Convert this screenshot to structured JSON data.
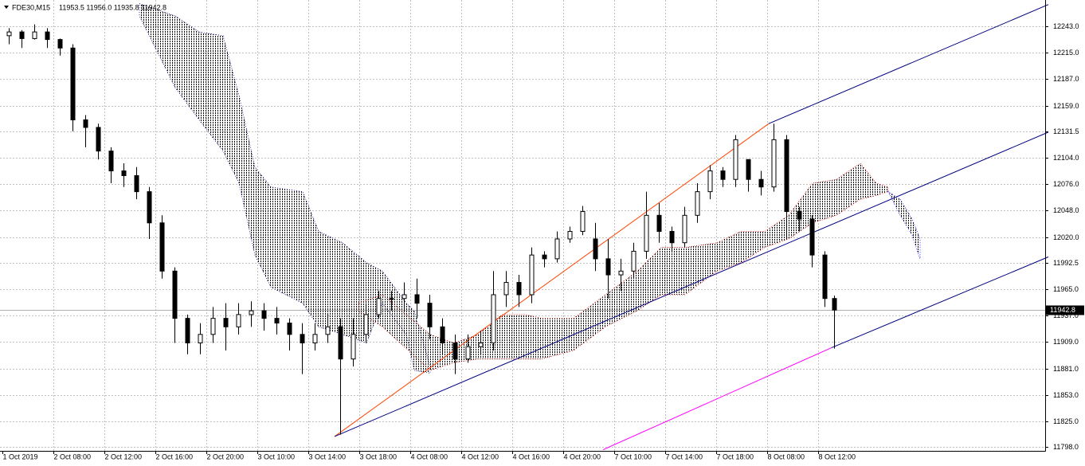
{
  "chart_data": {
    "type": "candlestick",
    "symbol": "FDE30,M15",
    "info": "11953.5 11956.0 11935.8 11942.8",
    "xlim": [
      -0.75,
      327.25
    ],
    "ylim": [
      11793.8,
      12270.8
    ],
    "grid": true,
    "bull_color": "#ffffff",
    "bear_color": "#000000",
    "xticks": [
      {
        "value": 0,
        "label": "1 Oct 2019"
      },
      {
        "value": 16,
        "label": "2 Oct 08:00"
      },
      {
        "value": 32,
        "label": "2 Oct 12:00"
      },
      {
        "value": 48,
        "label": "2 Oct 16:00"
      },
      {
        "value": 64,
        "label": "2 Oct 20:00"
      },
      {
        "value": 80,
        "label": "3 Oct 10:00"
      },
      {
        "value": 96,
        "label": "3 Oct 14:00"
      },
      {
        "value": 112,
        "label": "3 Oct 18:00"
      },
      {
        "value": 128,
        "label": "4 Oct 08:00"
      },
      {
        "value": 144,
        "label": "4 Oct 12:00"
      },
      {
        "value": 160,
        "label": "4 Oct 16:00"
      },
      {
        "value": 176,
        "label": "4 Oct 20:00"
      },
      {
        "value": 192,
        "label": "7 Oct 10:00"
      },
      {
        "value": 208,
        "label": "7 Oct 14:00"
      },
      {
        "value": 224,
        "label": "7 Oct 18:00"
      },
      {
        "value": 240,
        "label": "8 Oct 08:00"
      },
      {
        "value": 256,
        "label": "8 Oct 12:00"
      }
    ],
    "yticks": [
      {
        "value": 12243,
        "label": "12243.0"
      },
      {
        "value": 12215,
        "label": "12215.0"
      },
      {
        "value": 12187,
        "label": "12187.0"
      },
      {
        "value": 12159,
        "label": "12159.0"
      },
      12131.5,
      {
        "value": 12104,
        "label": "12104.0"
      },
      {
        "value": 12076,
        "label": "12076.0"
      },
      {
        "value": 12048,
        "label": "12048.0"
      },
      {
        "value": 12020,
        "label": "12020.0"
      },
      11992.5,
      {
        "value": 11965,
        "label": "11965.0"
      },
      {
        "value": 11937,
        "label": "11937.0"
      },
      {
        "value": 11909,
        "label": "11909.0"
      },
      {
        "value": 11881,
        "label": "11881.0"
      },
      {
        "value": 11853,
        "label": "11853.0"
      },
      {
        "value": 11825,
        "label": "11825.0"
      },
      {
        "value": 11798,
        "label": "11798.0"
      }
    ],
    "last_price": 11942.8,
    "x": [
      2,
      6,
      10,
      14,
      18,
      22,
      26,
      30,
      34,
      38,
      42,
      46,
      50,
      54,
      58,
      62,
      66,
      70,
      74,
      78,
      82,
      86,
      90,
      94,
      98,
      102,
      106,
      110,
      114,
      118,
      122,
      126,
      130,
      134,
      138,
      142,
      146,
      150,
      154,
      158,
      162,
      166,
      170,
      174,
      178,
      182,
      186,
      190,
      194,
      198,
      202,
      206,
      210,
      214,
      218,
      222,
      226,
      230,
      234,
      238,
      242,
      246,
      250,
      254,
      258,
      261
    ],
    "open": [
      12233,
      12237,
      12230,
      12237,
      12229,
      12220,
      12144,
      12136,
      12111,
      12090,
      12085,
      12068,
      12035,
      11984,
      11934,
      11908,
      11917,
      11934,
      11925,
      11938,
      11942,
      11934,
      11929,
      11917,
      11908,
      11917,
      11925,
      11891,
      11917,
      11938,
      11955,
      11955,
      11959,
      11950,
      11925,
      11908,
      11891,
      11904,
      11908,
      11959,
      11972,
      11959,
      12001,
      11997,
      12018,
      12026,
      12018,
      11997,
      11980,
      11984,
      12005,
      12043,
      12026,
      12014,
      12043,
      12068,
      12090,
      12081,
      12102,
      12081,
      12073,
      12123,
      12047,
      12039,
      12001,
      11955
    ],
    "high": [
      12241,
      12239,
      12245,
      12241,
      12230,
      12224,
      12149,
      12140,
      12115,
      12098,
      12094,
      12073,
      12043,
      11988,
      11938,
      11929,
      11946,
      11950,
      11950,
      11952,
      11950,
      11946,
      11934,
      11929,
      11929,
      11938,
      11934,
      11934,
      11950,
      11963,
      11963,
      11972,
      11976,
      11959,
      11934,
      11917,
      11917,
      11921,
      11984,
      11984,
      11980,
      12009,
      12005,
      12026,
      12031,
      12053,
      12035,
      12018,
      11997,
      12014,
      12068,
      12056,
      12031,
      12052,
      12077,
      12096,
      12094,
      12128,
      12102,
      12090,
      12140,
      12128,
      12052,
      12043,
      12005,
      11958
    ],
    "low": [
      12224,
      12220,
      12229,
      12220,
      12212,
      12132,
      12115,
      12102,
      12077,
      12073,
      12060,
      12018,
      11976,
      11908,
      11896,
      11896,
      11908,
      11900,
      11917,
      11925,
      11921,
      11917,
      11900,
      11875,
      11900,
      11908,
      11811,
      11883,
      11908,
      11934,
      11942,
      11942,
      11934,
      11912,
      11896,
      11875,
      11887,
      11896,
      11900,
      11946,
      11946,
      11950,
      11988,
      11993,
      12014,
      12022,
      11984,
      11955,
      11963,
      11976,
      11997,
      12014,
      12005,
      12009,
      12035,
      12060,
      12073,
      12073,
      12068,
      12064,
      12068,
      12018,
      12026,
      11988,
      11946,
      11902
    ],
    "close": [
      12237,
      12230,
      12237,
      12229,
      12220,
      12144,
      12136,
      12111,
      12090,
      12085,
      12068,
      12035,
      11984,
      11934,
      11908,
      11917,
      11934,
      11925,
      11938,
      11942,
      11934,
      11929,
      11917,
      11908,
      11917,
      11925,
      11891,
      11917,
      11938,
      11955,
      11955,
      11959,
      11950,
      11925,
      11908,
      11891,
      11904,
      11908,
      11959,
      11972,
      11959,
      12001,
      11997,
      12018,
      12026,
      12047,
      11997,
      11980,
      11984,
      12005,
      12043,
      12026,
      12014,
      12043,
      12068,
      12090,
      12081,
      12123,
      12081,
      12073,
      12123,
      12047,
      12039,
      12001,
      11955,
      11942.8
    ],
    "clouds": [
      {
        "color": "#00008b",
        "x": [
          43,
          54.25,
          61.75,
          69.25,
          74.25,
          79.25,
          84.25,
          94.25,
          99.25,
          106.75,
          114.25,
          119.25,
          126.75,
          129.25,
          134.25
        ],
        "upper": [
          12267,
          12254,
          12237,
          12233,
          12170,
          12094,
          12073,
          12068,
          12026,
          12014,
          11993,
          11984,
          11950,
          11942,
          11883
        ],
        "lower": [
          12254,
          12178,
          12144,
          12111,
          12077,
          12001,
          11967,
          11950,
          11925,
          11917,
          11908,
          11950,
          11917,
          11879,
          11876
        ]
      },
      {
        "color": "#e00000",
        "x": [
          111.75,
          119.25,
          134.25,
          141.75,
          149.25,
          156.75,
          164.25,
          169.25,
          179.25,
          189.25,
          199.25,
          206.75,
          214.25,
          224.25,
          231.75,
          239.25,
          246.75,
          254.25,
          261.75,
          269.25,
          274.25,
          278
        ],
        "upper": [
          11950,
          11959,
          11917,
          11908,
          11917,
          11938,
          11938,
          11934,
          11934,
          11959,
          11984,
          12009,
          12009,
          12014,
          12026,
          12026,
          12043,
          12077,
          12081,
          12098,
          12077,
          12073
        ],
        "lower": [
          11942,
          11925,
          11879,
          11887,
          11891,
          11891,
          11891,
          11891,
          11900,
          11925,
          11942,
          11959,
          11959,
          11984,
          11993,
          12009,
          12018,
          12035,
          12043,
          12060,
          12064,
          12068
        ]
      },
      {
        "color": "#0000ff",
        "x": [
          278,
          281.75,
          285.5,
          288
        ],
        "upper": [
          12068,
          12060,
          12039,
          12018
        ],
        "lower": [
          12068,
          12043,
          12022,
          11997
        ]
      }
    ],
    "lines": [
      {
        "color": "#ff4500",
        "x": [
          104.25,
          240.5
        ],
        "y": [
          11809,
          12140
        ]
      },
      {
        "color": "#000080",
        "x": [
          240.5,
          328.25
        ],
        "y": [
          12140,
          12266
        ]
      },
      {
        "color": "#000080",
        "x": [
          104.25,
          328.25
        ],
        "y": [
          11809,
          12131
        ]
      },
      {
        "color": "#ff00ff",
        "x": [
          188.5,
          260.25
        ],
        "y": [
          11795,
          11903
        ]
      },
      {
        "color": "#000080",
        "x": [
          260.25,
          328.25
        ],
        "y": [
          11903,
          11999
        ]
      }
    ]
  }
}
